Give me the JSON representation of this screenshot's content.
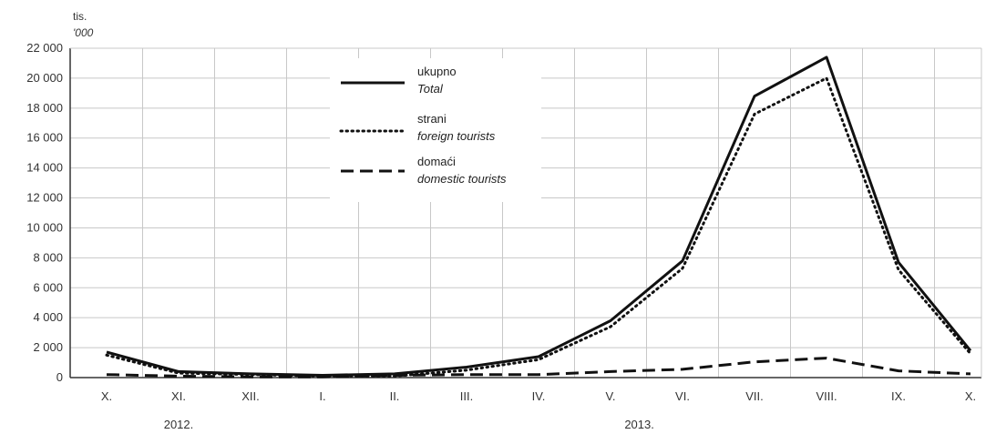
{
  "chart_data": {
    "type": "line",
    "unit_label_1": "tis.",
    "unit_label_2": "'000",
    "ylim": [
      0,
      22000
    ],
    "y_ticks": [
      "22 000",
      "20 000",
      "18 000",
      "16 000",
      "14 000",
      "12 000",
      "10 000",
      "8 000",
      "6 000",
      "4 000",
      "2 000",
      "0"
    ],
    "y_tick_values": [
      22000,
      20000,
      18000,
      16000,
      14000,
      12000,
      10000,
      8000,
      6000,
      4000,
      2000,
      0
    ],
    "categories": [
      "X.",
      "XI.",
      "XII.",
      "I.",
      "II.",
      "III.",
      "IV.",
      "V.",
      "VI.",
      "VII.",
      "VIII.",
      "IX.",
      "X."
    ],
    "years": [
      {
        "label": "2012.",
        "at_category": 1
      },
      {
        "label": "2013.",
        "at_category": 7.4
      }
    ],
    "grid": true,
    "legend_position": "top-center",
    "series": [
      {
        "name": "ukupno",
        "name_en": "Total",
        "style": "solid",
        "values": [
          1700,
          400,
          250,
          150,
          250,
          700,
          1400,
          3800,
          7800,
          18800,
          21400,
          7700,
          1800
        ]
      },
      {
        "name": "strani",
        "name_en": "foreign tourists",
        "style": "dotted",
        "values": [
          1500,
          300,
          200,
          100,
          100,
          500,
          1200,
          3400,
          7300,
          17600,
          20000,
          7200,
          1600
        ]
      },
      {
        "name": "domaći",
        "name_en": "domestic tourists",
        "style": "dashed",
        "values": [
          200,
          100,
          50,
          50,
          150,
          200,
          200,
          400,
          550,
          1050,
          1300,
          450,
          250
        ]
      }
    ]
  }
}
